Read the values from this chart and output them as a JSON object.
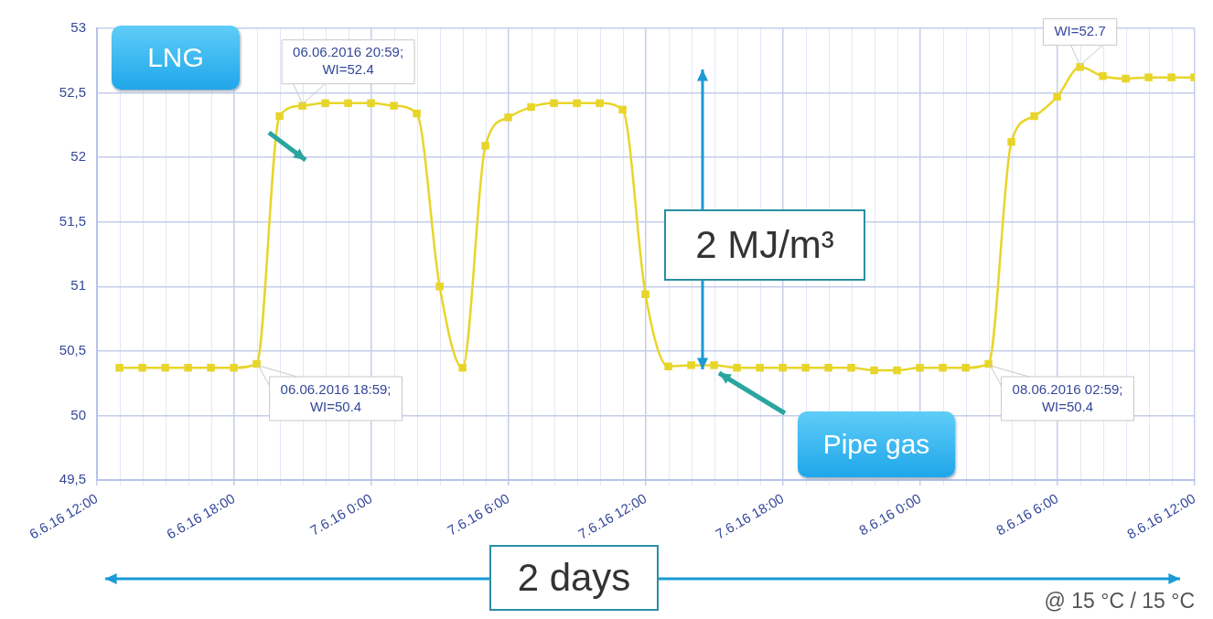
{
  "chart_data": {
    "type": "line",
    "x": [
      "2016-06-06T12:59",
      "2016-06-06T13:59",
      "2016-06-06T14:59",
      "2016-06-06T15:59",
      "2016-06-06T16:59",
      "2016-06-06T17:59",
      "2016-06-06T18:59",
      "2016-06-06T19:59",
      "2016-06-06T20:59",
      "2016-06-06T21:59",
      "2016-06-06T22:59",
      "2016-06-06T23:59",
      "2016-06-07T00:59",
      "2016-06-07T01:59",
      "2016-06-07T02:59",
      "2016-06-07T03:59",
      "2016-06-07T04:59",
      "2016-06-07T05:59",
      "2016-06-07T06:59",
      "2016-06-07T07:59",
      "2016-06-07T08:59",
      "2016-06-07T09:59",
      "2016-06-07T10:59",
      "2016-06-07T11:59",
      "2016-06-07T12:59",
      "2016-06-07T13:59",
      "2016-06-07T14:59",
      "2016-06-07T15:59",
      "2016-06-07T16:59",
      "2016-06-07T17:59",
      "2016-06-07T18:59",
      "2016-06-07T19:59",
      "2016-06-07T20:59",
      "2016-06-07T21:59",
      "2016-06-07T22:59",
      "2016-06-07T23:59",
      "2016-06-08T00:59",
      "2016-06-08T01:59",
      "2016-06-08T02:59",
      "2016-06-08T03:59",
      "2016-06-08T04:59",
      "2016-06-08T05:59",
      "2016-06-08T06:59",
      "2016-06-08T07:59",
      "2016-06-08T08:59",
      "2016-06-08T09:59",
      "2016-06-08T10:59",
      "2016-06-08T11:59"
    ],
    "series": [
      {
        "color": "#e8d52a",
        "values": [
          50.37,
          50.37,
          50.37,
          50.37,
          50.37,
          50.37,
          50.4,
          52.32,
          52.4,
          52.42,
          52.42,
          52.42,
          52.4,
          52.34,
          51.0,
          50.37,
          52.09,
          52.31,
          52.39,
          52.42,
          52.42,
          52.42,
          52.37,
          50.94,
          50.38,
          50.39,
          50.39,
          50.37,
          50.37,
          50.37,
          50.37,
          50.37,
          50.37,
          50.35,
          50.35,
          50.37,
          50.37,
          50.37,
          50.4,
          52.12,
          52.32,
          52.47,
          52.7,
          52.63,
          52.61,
          52.62,
          52.62,
          52.62
        ]
      }
    ],
    "xlim": [
      "2016-06-06T12:00",
      "2016-06-08T12:00"
    ],
    "xticks": [
      {
        "value": "2016-06-06T12:00",
        "label": "6.6.16 12:00"
      },
      {
        "value": "2016-06-06T13:00",
        "label": null
      },
      {
        "value": "2016-06-06T14:00",
        "label": null
      },
      {
        "value": "2016-06-06T15:00",
        "label": null
      },
      {
        "value": "2016-06-06T16:00",
        "label": null
      },
      {
        "value": "2016-06-06T17:00",
        "label": null
      },
      {
        "value": "2016-06-06T18:00",
        "label": "6.6.16 18:00"
      },
      {
        "value": "2016-06-06T19:00",
        "label": null
      },
      {
        "value": "2016-06-06T20:00",
        "label": null
      },
      {
        "value": "2016-06-06T21:00",
        "label": null
      },
      {
        "value": "2016-06-06T22:00",
        "label": null
      },
      {
        "value": "2016-06-06T23:00",
        "label": null
      },
      {
        "value": "2016-06-07T00:00",
        "label": "7.6.16 0:00"
      },
      {
        "value": "2016-06-07T01:00",
        "label": null
      },
      {
        "value": "2016-06-07T02:00",
        "label": null
      },
      {
        "value": "2016-06-07T03:00",
        "label": null
      },
      {
        "value": "2016-06-07T04:00",
        "label": null
      },
      {
        "value": "2016-06-07T05:00",
        "label": null
      },
      {
        "value": "2016-06-07T06:00",
        "label": "7.6.16 6:00"
      },
      {
        "value": "2016-06-07T07:00",
        "label": null
      },
      {
        "value": "2016-06-07T08:00",
        "label": null
      },
      {
        "value": "2016-06-07T09:00",
        "label": null
      },
      {
        "value": "2016-06-07T10:00",
        "label": null
      },
      {
        "value": "2016-06-07T11:00",
        "label": null
      },
      {
        "value": "2016-06-07T12:00",
        "label": "7.6.16 12:00"
      },
      {
        "value": "2016-06-07T13:00",
        "label": null
      },
      {
        "value": "2016-06-07T14:00",
        "label": null
      },
      {
        "value": "2016-06-07T15:00",
        "label": null
      },
      {
        "value": "2016-06-07T16:00",
        "label": null
      },
      {
        "value": "2016-06-07T17:00",
        "label": null
      },
      {
        "value": "2016-06-07T18:00",
        "label": "7.6.16 18:00"
      },
      {
        "value": "2016-06-07T19:00",
        "label": null
      },
      {
        "value": "2016-06-07T20:00",
        "label": null
      },
      {
        "value": "2016-06-07T21:00",
        "label": null
      },
      {
        "value": "2016-06-07T22:00",
        "label": null
      },
      {
        "value": "2016-06-07T23:00",
        "label": null
      },
      {
        "value": "2016-06-08T00:00",
        "label": "8.6.16 0:00"
      },
      {
        "value": "2016-06-08T01:00",
        "label": null
      },
      {
        "value": "2016-06-08T02:00",
        "label": null
      },
      {
        "value": "2016-06-08T03:00",
        "label": null
      },
      {
        "value": "2016-06-08T04:00",
        "label": null
      },
      {
        "value": "2016-06-08T05:00",
        "label": null
      },
      {
        "value": "2016-06-08T06:00",
        "label": "8.6.16 6:00"
      },
      {
        "value": "2016-06-08T07:00",
        "label": null
      },
      {
        "value": "2016-06-08T08:00",
        "label": null
      },
      {
        "value": "2016-06-08T09:00",
        "label": null
      },
      {
        "value": "2016-06-08T10:00",
        "label": null
      },
      {
        "value": "2016-06-08T11:00",
        "label": null
      },
      {
        "value": "2016-06-08T12:00",
        "label": "8.6.16 12:00"
      }
    ],
    "ylim": [
      49.5,
      53
    ],
    "yticks": [
      {
        "value": 49.5,
        "label": "49,5"
      },
      50,
      {
        "value": 50.5,
        "label": "50,5"
      },
      51,
      {
        "value": 51.5,
        "label": "51,5"
      },
      52,
      {
        "value": 52.5,
        "label": "52,5"
      },
      53
    ],
    "grid": true,
    "marker": "square",
    "annotations": [
      "LNG",
      "Pipe gas",
      "2 MJ/m³",
      "2 days",
      "@ 15 °C / 15 °C",
      {
        "text": "06.06.2016 18:59;\nWI=50.4",
        "x": "2016-06-06T18:59",
        "y": 50.4
      },
      {
        "text": "06.06.2016 20:59;\nWI=52.4",
        "x": "2016-06-06T20:59",
        "y": 52.4
      },
      {
        "text": "08.06.2016 02:59;\nWI=50.4",
        "x": "2016-06-08T02:59",
        "y": 50.4
      },
      {
        "text": "WI=52.7",
        "x": "2016-06-08T06:59",
        "y": 52.7
      }
    ]
  }
}
